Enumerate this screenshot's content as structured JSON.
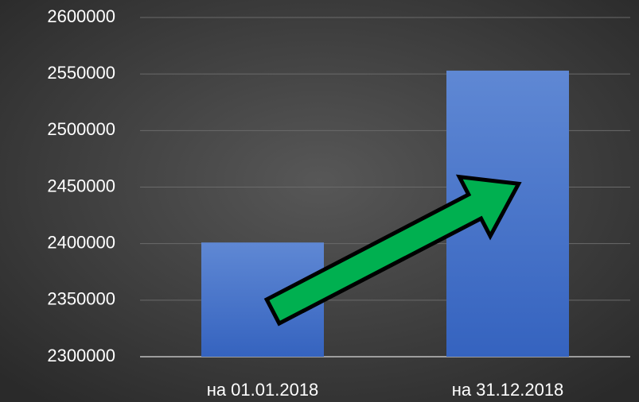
{
  "chart_data": {
    "type": "bar",
    "categories": [
      "на 01.01.2018",
      "на 31.12.2018"
    ],
    "values": [
      2401000,
      2553000
    ],
    "color": "#4a74c9",
    "ylim": [
      2300000,
      2600000
    ],
    "yticks": [
      2300000,
      2350000,
      2400000,
      2450000,
      2500000,
      2550000,
      2600000
    ],
    "grid": true
  }
}
